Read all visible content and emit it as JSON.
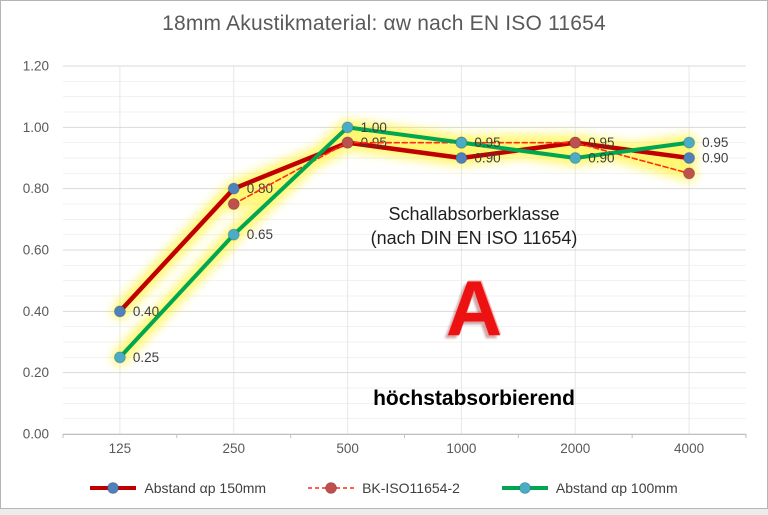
{
  "frame": {
    "background": "#FFFFFF",
    "border_color": "#B5B5B5",
    "page_background": "#ECECEC"
  },
  "chart_data": {
    "type": "line",
    "title": "18mm Akustikmaterial: αw nach EN ISO 11654",
    "categories": [
      "125",
      "250",
      "500",
      "1000",
      "2000",
      "4000"
    ],
    "y_axis": {
      "min": 0,
      "max": 1.2,
      "major_step": 0.2,
      "minor_step": 0.05,
      "tick_labels": [
        "0.00",
        "0.20",
        "0.40",
        "0.60",
        "0.80",
        "1.00",
        "1.20"
      ]
    },
    "grid": {
      "major_color": "#D9D9D9",
      "minor_color": "#F1F1F1",
      "vertical_color": "#E7E7E7",
      "axis_line_color": "#BFBFBF"
    },
    "legend_position": "bottom",
    "highlight_glow_color": "#FFF100",
    "label_color": "#3F3F3F",
    "axis_text_color": "#595959",
    "series": [
      {
        "name": "Abstand αp 150mm",
        "line_color": "#C00000",
        "line_style": "solid",
        "line_width": 4.5,
        "marker_color": "#4F81BD",
        "values": [
          0.4,
          0.8,
          0.95,
          0.9,
          0.95,
          0.9
        ],
        "data_labels": [
          "0.40",
          "0.80",
          "0.95",
          "0.90",
          "0.95",
          "0.90"
        ]
      },
      {
        "name": "BK-ISO11654-2",
        "line_color": "#FF2B1A",
        "line_style": "dashed",
        "line_width": 1.6,
        "marker_color": "#C0504D",
        "values": [
          null,
          0.75,
          0.95,
          0.95,
          0.95,
          0.85
        ],
        "data_labels": [
          null,
          null,
          null,
          null,
          null,
          null
        ]
      },
      {
        "name": "Abstand  αp 100mm",
        "line_color": "#00A651",
        "line_style": "solid",
        "line_width": 4,
        "marker_color": "#4BACC6",
        "values": [
          0.25,
          0.65,
          1.0,
          0.95,
          0.9,
          0.95
        ],
        "data_labels": [
          "0.25",
          "0.65",
          "1.00",
          "0.95",
          "0.90",
          "0.95"
        ]
      }
    ]
  },
  "annotations": {
    "klasse_line1": "Schallabsorberklasse",
    "klasse_line2": "(nach DIN EN ISO 11654)",
    "class_letter": "A",
    "class_letter_color": "#EC1212",
    "class_description": "höchstabsorbierend"
  }
}
